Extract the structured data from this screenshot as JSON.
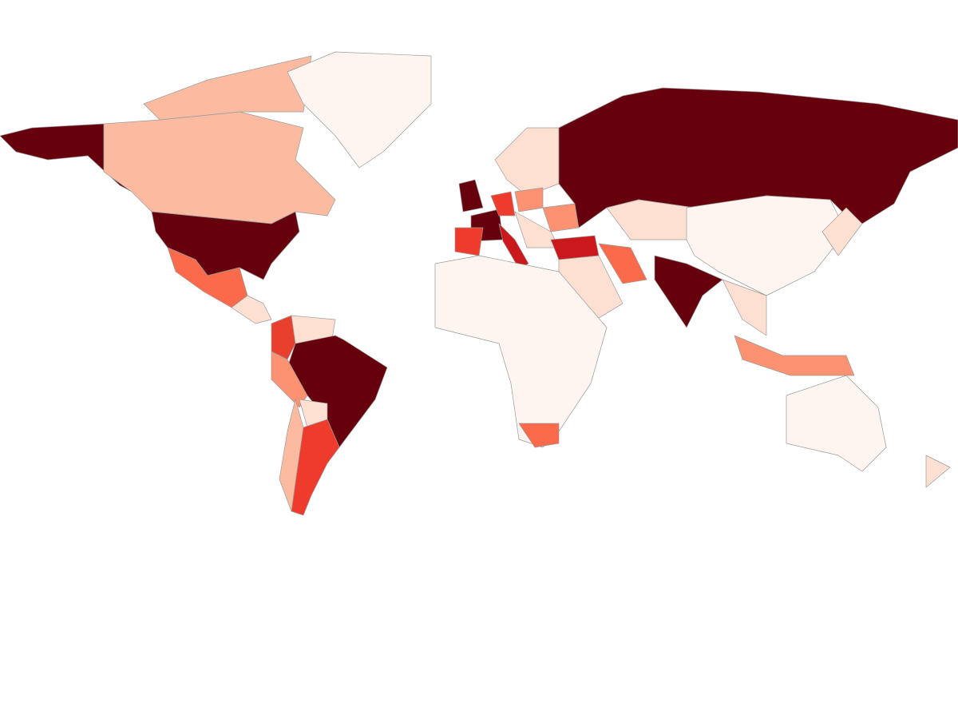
{
  "map": {
    "background": "#ffffff",
    "border_color": "#9a9a9a",
    "regions": [
      {
        "color": "#67000d"
      },
      {
        "color": "#fcbba1"
      },
      {
        "color": "#fcbba1"
      },
      {
        "color": "#fff5f0"
      },
      {
        "color": "#67000d"
      },
      {
        "color": "#fb6a4a"
      },
      {
        "color": "#fee0d2"
      },
      {
        "color": "#e8402c"
      },
      {
        "color": "#fee0d2"
      },
      {
        "color": "#67000d"
      },
      {
        "color": "#fc9272"
      },
      {
        "color": "#fee0d2"
      },
      {
        "color": "#ef3b2c"
      },
      {
        "color": "#fcbba1"
      },
      {
        "color": "#67000d"
      },
      {
        "color": "#67000d"
      },
      {
        "color": "#ef3b2c"
      },
      {
        "color": "#cb181d"
      },
      {
        "color": "#ef3b2c"
      },
      {
        "color": "#fee0d2"
      },
      {
        "color": "#fc9272"
      },
      {
        "color": "#fc9272"
      },
      {
        "color": "#fee0d2"
      },
      {
        "color": "#cb181d"
      },
      {
        "color": "#67000d"
      },
      {
        "color": "#fee0d2"
      },
      {
        "color": "#fff5f0"
      },
      {
        "color": "#fee0d2"
      },
      {
        "color": "#fb6a4a"
      },
      {
        "color": "#67000d"
      },
      {
        "color": "#fee0d2"
      },
      {
        "color": "#fc9272"
      },
      {
        "color": "#fee0d2"
      },
      {
        "color": "#fff5f0"
      },
      {
        "color": "#fb6a4a"
      },
      {
        "color": "#fff5f0"
      },
      {
        "color": "#fee0d2"
      }
    ]
  }
}
